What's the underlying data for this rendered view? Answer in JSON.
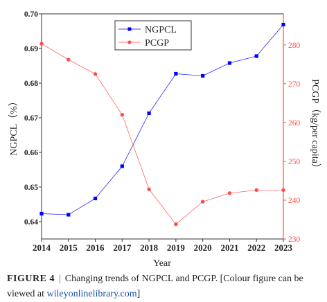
{
  "chart_data": {
    "type": "line",
    "x": [
      2014,
      2015,
      2016,
      2017,
      2018,
      2019,
      2020,
      2021,
      2022,
      2023
    ],
    "xlabel": "Year",
    "y_left": {
      "label": "NGPCL（%）",
      "lim": [
        0.635,
        0.7
      ],
      "ticks": [
        0.64,
        0.65,
        0.66,
        0.67,
        0.68,
        0.69,
        0.7
      ],
      "tick_labels": [
        "0.64",
        "0.65",
        "0.66",
        "0.67",
        "0.68",
        "0.69",
        "0.70"
      ]
    },
    "y_right": {
      "label": "PCGP（kg/per capita）",
      "lim": [
        230,
        288
      ],
      "ticks": [
        230,
        240,
        250,
        260,
        270,
        280
      ],
      "tick_labels": [
        "230",
        "240",
        "250",
        "260",
        "270",
        "280"
      ]
    },
    "series": [
      {
        "name": "NGPCL",
        "axis": "left",
        "color": "#0000ff",
        "marker": "square",
        "values": [
          0.6423,
          0.642,
          0.6467,
          0.656,
          0.6713,
          0.6827,
          0.6821,
          0.6858,
          0.6878,
          0.6969
        ]
      },
      {
        "name": "PCGP",
        "axis": "right",
        "color": "#ff4d4d",
        "marker": "circle",
        "values": [
          280.3,
          276.2,
          272.5,
          262.0,
          242.8,
          233.8,
          239.6,
          241.8,
          242.6,
          242.6
        ]
      }
    ],
    "legend": {
      "position": "top-center"
    },
    "grid": false
  },
  "caption": {
    "label": "FIGURE 4",
    "separator": "|",
    "text": "Changing trends of NGPCL and PCGP. [Colour figure can be viewed at",
    "link": "wileyonlinelibrary.com",
    "end": "]"
  }
}
